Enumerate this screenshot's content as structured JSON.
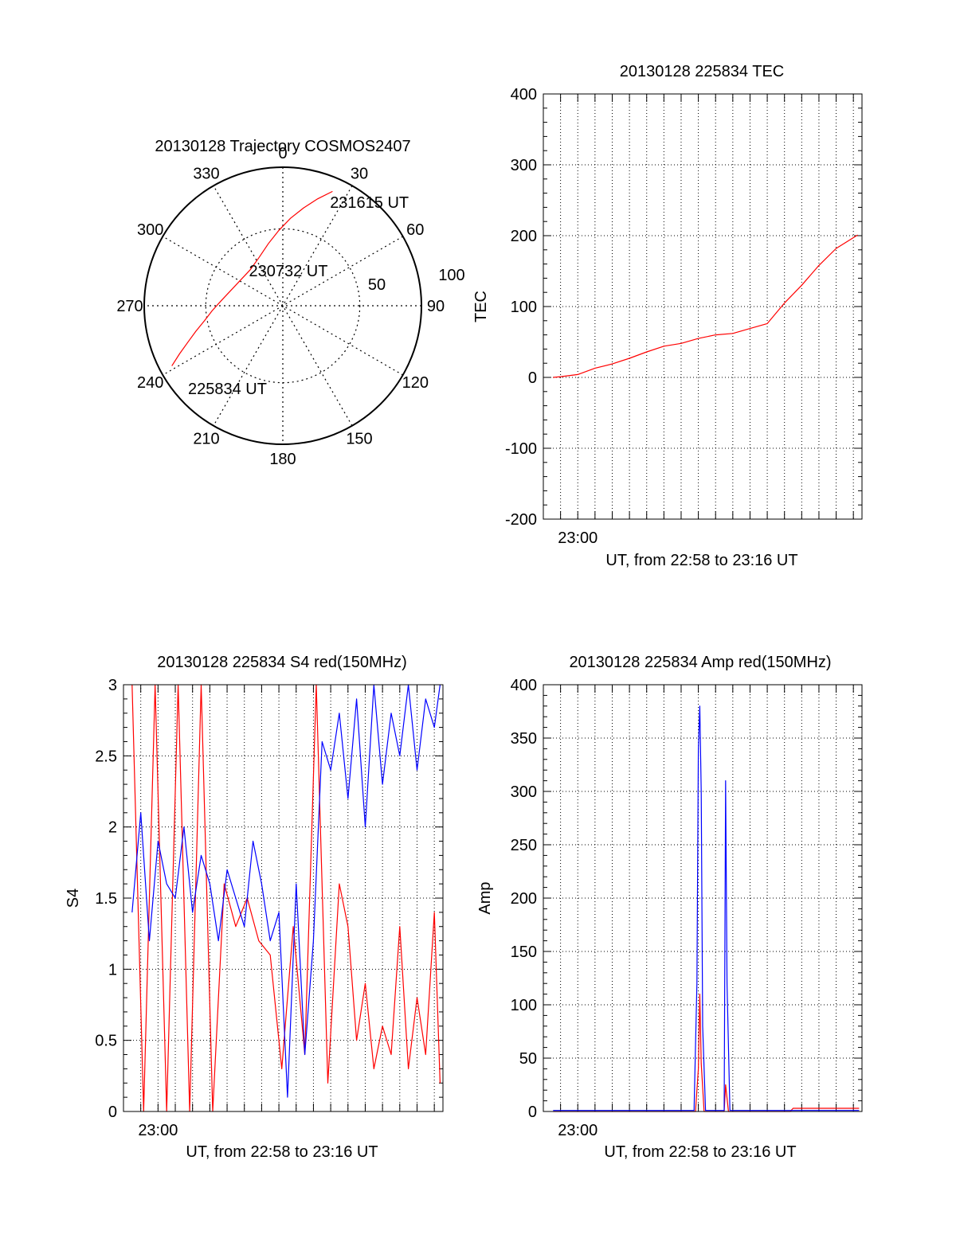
{
  "colors": {
    "red": "#ff0000",
    "blue": "#0000ff",
    "axis": "#000000",
    "grid": "#000000",
    "background": "#ffffff"
  },
  "chart_data": [
    {
      "id": "trajectory",
      "type": "polar",
      "title": "20130128 Trajectory COSMOS2407",
      "azimuth_labels": [
        "0",
        "30",
        "60",
        "90",
        "120",
        "150",
        "180",
        "210",
        "240",
        "270",
        "300",
        "330"
      ],
      "radial_labels": [
        "50",
        "100"
      ],
      "grid": true,
      "series": [
        {
          "color": "red",
          "points": [
            {
              "az": 241.5,
              "zen": 82
            },
            {
              "az": 245,
              "zen": 74
            },
            {
              "az": 249,
              "zen": 66
            },
            {
              "az": 253.5,
              "zen": 59
            },
            {
              "az": 259,
              "zen": 52
            },
            {
              "az": 266,
              "zen": 46
            },
            {
              "az": 275,
              "zen": 40
            },
            {
              "az": 287,
              "zen": 35
            },
            {
              "az": 302,
              "zen": 32
            },
            {
              "az": 318,
              "zen": 31.5
            },
            {
              "az": 334,
              "zen": 35
            },
            {
              "az": 347,
              "zen": 41.5
            },
            {
              "az": 357,
              "zen": 49
            },
            {
              "az": 5,
              "zen": 57
            },
            {
              "az": 12,
              "zen": 65
            },
            {
              "az": 18,
              "zen": 73
            },
            {
              "az": 23.5,
              "zen": 81
            }
          ]
        }
      ],
      "annotations": [
        {
          "text": "231615 UT",
          "az": 22,
          "zen": 90
        },
        {
          "text": "230732 UT",
          "az": 355,
          "zen": 3
        },
        {
          "text": "225834 UT",
          "az": 216,
          "zen": 68
        }
      ]
    },
    {
      "id": "tec",
      "type": "line",
      "title": "20130128 225834 TEC",
      "xlabel": "UT, from 22:58 to 23:16 UT",
      "ylabel": "TEC",
      "xlim": [
        "22:58:00",
        "23:16:30"
      ],
      "ylim": [
        -200,
        400
      ],
      "yticks": [
        -200,
        -100,
        0,
        100,
        200,
        300,
        400
      ],
      "xtick_labels": [
        {
          "label": "23:00",
          "time": "23:00:00"
        }
      ],
      "grid": true,
      "series": [
        {
          "color": "red",
          "x": [
            "22:58:34",
            "22:59:00",
            "23:00:00",
            "23:01:00",
            "23:02:00",
            "23:03:00",
            "23:04:00",
            "23:05:00",
            "23:06:00",
            "23:07:00",
            "23:08:00",
            "23:09:00",
            "23:10:00",
            "23:11:00",
            "23:12:00",
            "23:13:00",
            "23:14:00",
            "23:15:00",
            "23:16:15"
          ],
          "y": [
            0,
            1,
            4,
            13,
            19,
            27,
            36,
            44,
            48,
            55,
            60,
            62,
            69,
            76,
            105,
            130,
            158,
            182,
            201
          ]
        }
      ]
    },
    {
      "id": "s4",
      "type": "line",
      "title": "20130128 225834 S4 red(150MHz)",
      "xlabel": "UT, from 22:58 to 23:16 UT",
      "ylabel": "S4",
      "xlim": [
        "22:58:00",
        "23:16:30"
      ],
      "ylim": [
        0,
        3
      ],
      "yticks": [
        0,
        0.5,
        1,
        1.5,
        2,
        2.5,
        3
      ],
      "ytick_labels": [
        "0",
        "0.5",
        "1",
        "1.5",
        "2",
        "2.5",
        "3"
      ],
      "xtick_labels": [
        {
          "label": "23:00",
          "time": "23:00:00"
        }
      ],
      "grid": true,
      "series": [
        {
          "color": "red",
          "x": [
            "22:58:30",
            "22:59:10",
            "22:59:50",
            "23:00:30",
            "23:01:10",
            "23:01:50",
            "23:02:30",
            "23:03:10",
            "23:03:50",
            "23:04:30",
            "23:05:10",
            "23:05:50",
            "23:06:30",
            "23:07:10",
            "23:07:50",
            "23:08:30",
            "23:09:10",
            "23:09:50",
            "23:10:30",
            "23:11:00",
            "23:11:30",
            "23:12:00",
            "23:12:30",
            "23:13:00",
            "23:13:30",
            "23:14:00",
            "23:14:30",
            "23:15:00",
            "23:15:30",
            "23:16:00",
            "23:16:20"
          ],
          "y": [
            3,
            0,
            3,
            0,
            3,
            0,
            3,
            0,
            1.6,
            1.3,
            1.5,
            1.2,
            1.1,
            0.3,
            1.3,
            0.4,
            3,
            0.2,
            1.6,
            1.3,
            0.5,
            0.9,
            0.3,
            0.6,
            0.4,
            1.3,
            0.3,
            0.8,
            0.4,
            1.4,
            0.2
          ]
        },
        {
          "color": "blue",
          "x": [
            "22:58:30",
            "22:59:00",
            "22:59:30",
            "23:00:00",
            "23:00:30",
            "23:01:00",
            "23:01:30",
            "23:02:00",
            "23:02:30",
            "23:03:00",
            "23:03:30",
            "23:04:00",
            "23:04:30",
            "23:05:00",
            "23:05:30",
            "23:06:00",
            "23:06:30",
            "23:07:00",
            "23:07:30",
            "23:08:00",
            "23:08:30",
            "23:09:00",
            "23:09:30",
            "23:10:00",
            "23:10:30",
            "23:11:00",
            "23:11:30",
            "23:12:00",
            "23:12:30",
            "23:13:00",
            "23:13:30",
            "23:14:00",
            "23:14:30",
            "23:15:00",
            "23:15:30",
            "23:16:00",
            "23:16:20"
          ],
          "y": [
            1.4,
            2.1,
            1.2,
            1.9,
            1.6,
            1.5,
            2.0,
            1.4,
            1.8,
            1.6,
            1.2,
            1.7,
            1.5,
            1.3,
            1.9,
            1.6,
            1.2,
            1.4,
            0.1,
            1.6,
            0.4,
            1.2,
            2.6,
            2.4,
            2.8,
            2.2,
            2.9,
            2.0,
            3.0,
            2.3,
            2.8,
            2.5,
            3.0,
            2.4,
            2.9,
            2.7,
            3.0
          ]
        }
      ]
    },
    {
      "id": "amp",
      "type": "line",
      "title": "20130128 225834 Amp red(150MHz)",
      "xlabel": "UT, from 22:58 to 23:16 UT",
      "ylabel": "Amp",
      "xlim": [
        "22:58:00",
        "23:16:30"
      ],
      "ylim": [
        0,
        400
      ],
      "yticks": [
        0,
        50,
        100,
        150,
        200,
        250,
        300,
        350,
        400
      ],
      "xtick_labels": [
        {
          "label": "23:00",
          "time": "23:00:00"
        }
      ],
      "grid": true,
      "series": [
        {
          "color": "red",
          "x": [
            "22:58:34",
            "23:06:50",
            "23:07:00",
            "23:07:05",
            "23:07:10",
            "23:07:20",
            "23:08:30",
            "23:08:35",
            "23:08:45",
            "23:12:20",
            "23:12:30",
            "23:16:20"
          ],
          "y": [
            0,
            0,
            40,
            110,
            45,
            0,
            0,
            25,
            0,
            0,
            3,
            3
          ]
        },
        {
          "color": "blue",
          "x": [
            "22:58:34",
            "23:06:45",
            "23:06:55",
            "23:07:00",
            "23:07:05",
            "23:07:10",
            "23:07:15",
            "23:07:25",
            "23:08:30",
            "23:08:35",
            "23:08:40",
            "23:08:50",
            "23:16:20"
          ],
          "y": [
            1,
            1,
            120,
            340,
            380,
            300,
            80,
            1,
            1,
            310,
            120,
            1,
            1
          ]
        }
      ]
    }
  ]
}
